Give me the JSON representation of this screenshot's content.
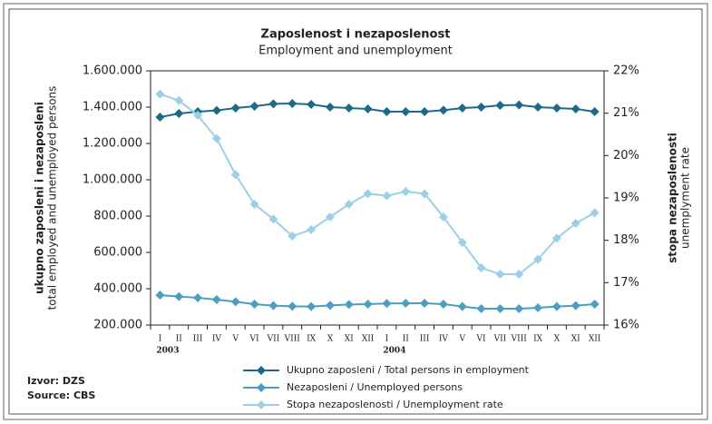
{
  "chart_data": {
    "type": "line",
    "title": "Zaposlenost i nezaposlenost",
    "subtitle": "Employment and unemployment",
    "ylabel": "ukupno zaposleni i nezaposleni",
    "ylabel_en": "total employed and unemployed persons",
    "y2label": "stopa nezaposlenosti",
    "y2label_en": "unemplyment rate",
    "source": "Izvor: DZS",
    "source_en": "Source: CBS",
    "categories": [
      "I",
      "II",
      "III",
      "IV",
      "V",
      "VI",
      "VII",
      "VIII",
      "IX",
      "X",
      "XI",
      "XII",
      "I",
      "II",
      "III",
      "IV",
      "V",
      "VI",
      "VII",
      "VIII",
      "IX",
      "X",
      "XI",
      "XII"
    ],
    "groups": [
      "2003",
      "2004"
    ],
    "ylim": [
      200000,
      1600000
    ],
    "yticks": [
      {
        "value": 200000,
        "label": "200.000"
      },
      {
        "value": 400000,
        "label": "400.000"
      },
      {
        "value": 600000,
        "label": "600.000"
      },
      {
        "value": 800000,
        "label": "800.000"
      },
      {
        "value": 1000000,
        "label": "1.000.000"
      },
      {
        "value": 1200000,
        "label": "1.200.000"
      },
      {
        "value": 1400000,
        "label": "1.400.000"
      },
      {
        "value": 1600000,
        "label": "1.600.000"
      }
    ],
    "y2lim": [
      16,
      22
    ],
    "y2ticks": [
      {
        "value": 16,
        "label": "16%"
      },
      {
        "value": 17,
        "label": "17%"
      },
      {
        "value": 18,
        "label": "18%"
      },
      {
        "value": 19,
        "label": "19%"
      },
      {
        "value": 20,
        "label": "20%"
      },
      {
        "value": 21,
        "label": "21%"
      },
      {
        "value": 22,
        "label": "22%"
      }
    ],
    "grid": false,
    "series": [
      {
        "name": "Ukupno zaposleni / Total persons in employment",
        "color": "#1d6a88",
        "values": [
          1345000,
          1365000,
          1375000,
          1382000,
          1395000,
          1405000,
          1418000,
          1420000,
          1415000,
          1400000,
          1395000,
          1390000,
          1375000,
          1375000,
          1375000,
          1383000,
          1395000,
          1400000,
          1410000,
          1412000,
          1400000,
          1395000,
          1390000,
          1375000
        ]
      },
      {
        "name": "Nezaposleni / Unemployed persons",
        "color": "#4b9fc0",
        "values": [
          365000,
          357000,
          350000,
          340000,
          328000,
          315000,
          307000,
          303000,
          302000,
          308000,
          313000,
          315000,
          319000,
          320000,
          320000,
          315000,
          302000,
          290000,
          290000,
          290000,
          295000,
          302000,
          307000,
          315000
        ]
      },
      {
        "name": "Stopa nezaposlenosti / Unemployment rate",
        "color": "#9dcfe6",
        "axis": "y2",
        "values": [
          21.45,
          21.3,
          20.95,
          20.4,
          19.55,
          18.85,
          18.5,
          18.1,
          18.25,
          18.55,
          18.85,
          19.1,
          19.05,
          19.15,
          19.1,
          18.55,
          17.95,
          17.35,
          17.2,
          17.2,
          17.55,
          18.05,
          18.4,
          18.65
        ]
      }
    ]
  }
}
